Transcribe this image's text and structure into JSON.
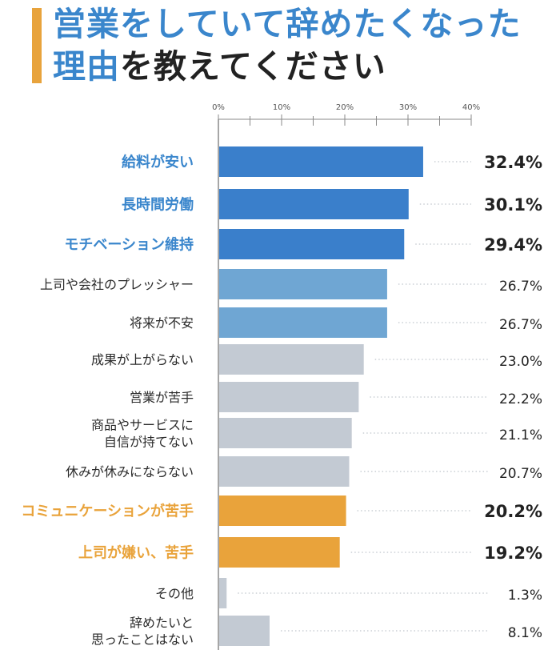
{
  "header": {
    "title_line1": "営業をしていて辞めたくなった",
    "title_line2_highlight": "理由",
    "title_line2_rest": "を教えてください"
  },
  "colors": {
    "dark_blue": "#3a7fcb",
    "light_blue": "#6fa6d3",
    "gray": "#c3cad3",
    "orange": "#e9a33b",
    "blue_text": "#3a86cc",
    "orange_text": "#e9a33b",
    "default_text": "#2a2a2a",
    "axis": "#8a8a8a"
  },
  "chart_data": {
    "type": "bar",
    "orientation": "horizontal",
    "xlim": [
      0,
      40
    ],
    "xticks": [
      0,
      10,
      20,
      30,
      40
    ],
    "xtick_labels": [
      "0%",
      "10%",
      "20%",
      "30%",
      "40%"
    ],
    "grid": false,
    "categories": [
      "給料が安い",
      "長時間労働",
      "モチベーション維持",
      "上司や会社のプレッシャー",
      "将来が不安",
      "成果が上がらない",
      "営業が苦手",
      "商品やサービスに\n自信が持てない",
      "休みが休みにならない",
      "コミュニケーションが苦手",
      "上司が嫌い、苦手",
      "その他",
      "辞めたいと\n思ったことはない"
    ],
    "values": [
      32.4,
      30.1,
      29.4,
      26.7,
      26.7,
      23.0,
      22.2,
      21.1,
      20.7,
      20.2,
      19.2,
      1.3,
      8.1
    ],
    "value_labels": [
      "32.4%",
      "30.1%",
      "29.4%",
      "26.7%",
      "26.7%",
      "23.0%",
      "22.2%",
      "21.1%",
      "20.7%",
      "20.2%",
      "19.2%",
      "1.3%",
      "8.1%"
    ],
    "bar_color_keys": [
      "dark_blue",
      "dark_blue",
      "dark_blue",
      "light_blue",
      "light_blue",
      "gray",
      "gray",
      "gray",
      "gray",
      "orange",
      "orange",
      "gray",
      "gray"
    ],
    "highlight": [
      "blue",
      "blue",
      "blue",
      "none",
      "none",
      "none",
      "none",
      "none",
      "none",
      "orange",
      "orange",
      "none",
      "none"
    ]
  }
}
